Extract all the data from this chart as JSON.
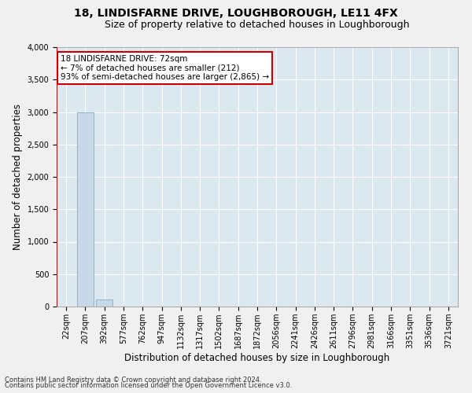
{
  "title": "18, LINDISFARNE DRIVE, LOUGHBOROUGH, LE11 4FX",
  "subtitle": "Size of property relative to detached houses in Loughborough",
  "xlabel": "Distribution of detached houses by size in Loughborough",
  "ylabel": "Number of detached properties",
  "footnote1": "Contains HM Land Registry data © Crown copyright and database right 2024.",
  "footnote2": "Contains public sector information licensed under the Open Government Licence v3.0.",
  "annotation_line1": "18 LINDISFARNE DRIVE: 72sqm",
  "annotation_line2": "← 7% of detached houses are smaller (212)",
  "annotation_line3": "93% of semi-detached houses are larger (2,865) →",
  "bar_labels": [
    "22sqm",
    "207sqm",
    "392sqm",
    "577sqm",
    "762sqm",
    "947sqm",
    "1132sqm",
    "1317sqm",
    "1502sqm",
    "1687sqm",
    "1872sqm",
    "2056sqm",
    "2241sqm",
    "2426sqm",
    "2611sqm",
    "2796sqm",
    "2981sqm",
    "3166sqm",
    "3351sqm",
    "3536sqm",
    "3721sqm"
  ],
  "bar_values": [
    5,
    3000,
    110,
    0,
    0,
    0,
    0,
    0,
    0,
    0,
    0,
    0,
    0,
    0,
    0,
    0,
    0,
    0,
    0,
    0,
    0
  ],
  "bar_color": "#c8d8e8",
  "bar_edge_color": "#8aaabf",
  "annotation_box_color": "#ffffff",
  "annotation_box_edge_color": "#cc0000",
  "red_line_color": "#cc0000",
  "ylim": [
    0,
    4000
  ],
  "yticks": [
    0,
    500,
    1000,
    1500,
    2000,
    2500,
    3000,
    3500,
    4000
  ],
  "background_color": "#dce8f0",
  "plot_bg_color": "#dce8f0",
  "grid_color": "#ffffff",
  "title_fontsize": 10,
  "subtitle_fontsize": 9,
  "axis_label_fontsize": 8.5,
  "tick_fontsize": 7,
  "annot_fontsize": 7.5,
  "footnote_fontsize": 6
}
